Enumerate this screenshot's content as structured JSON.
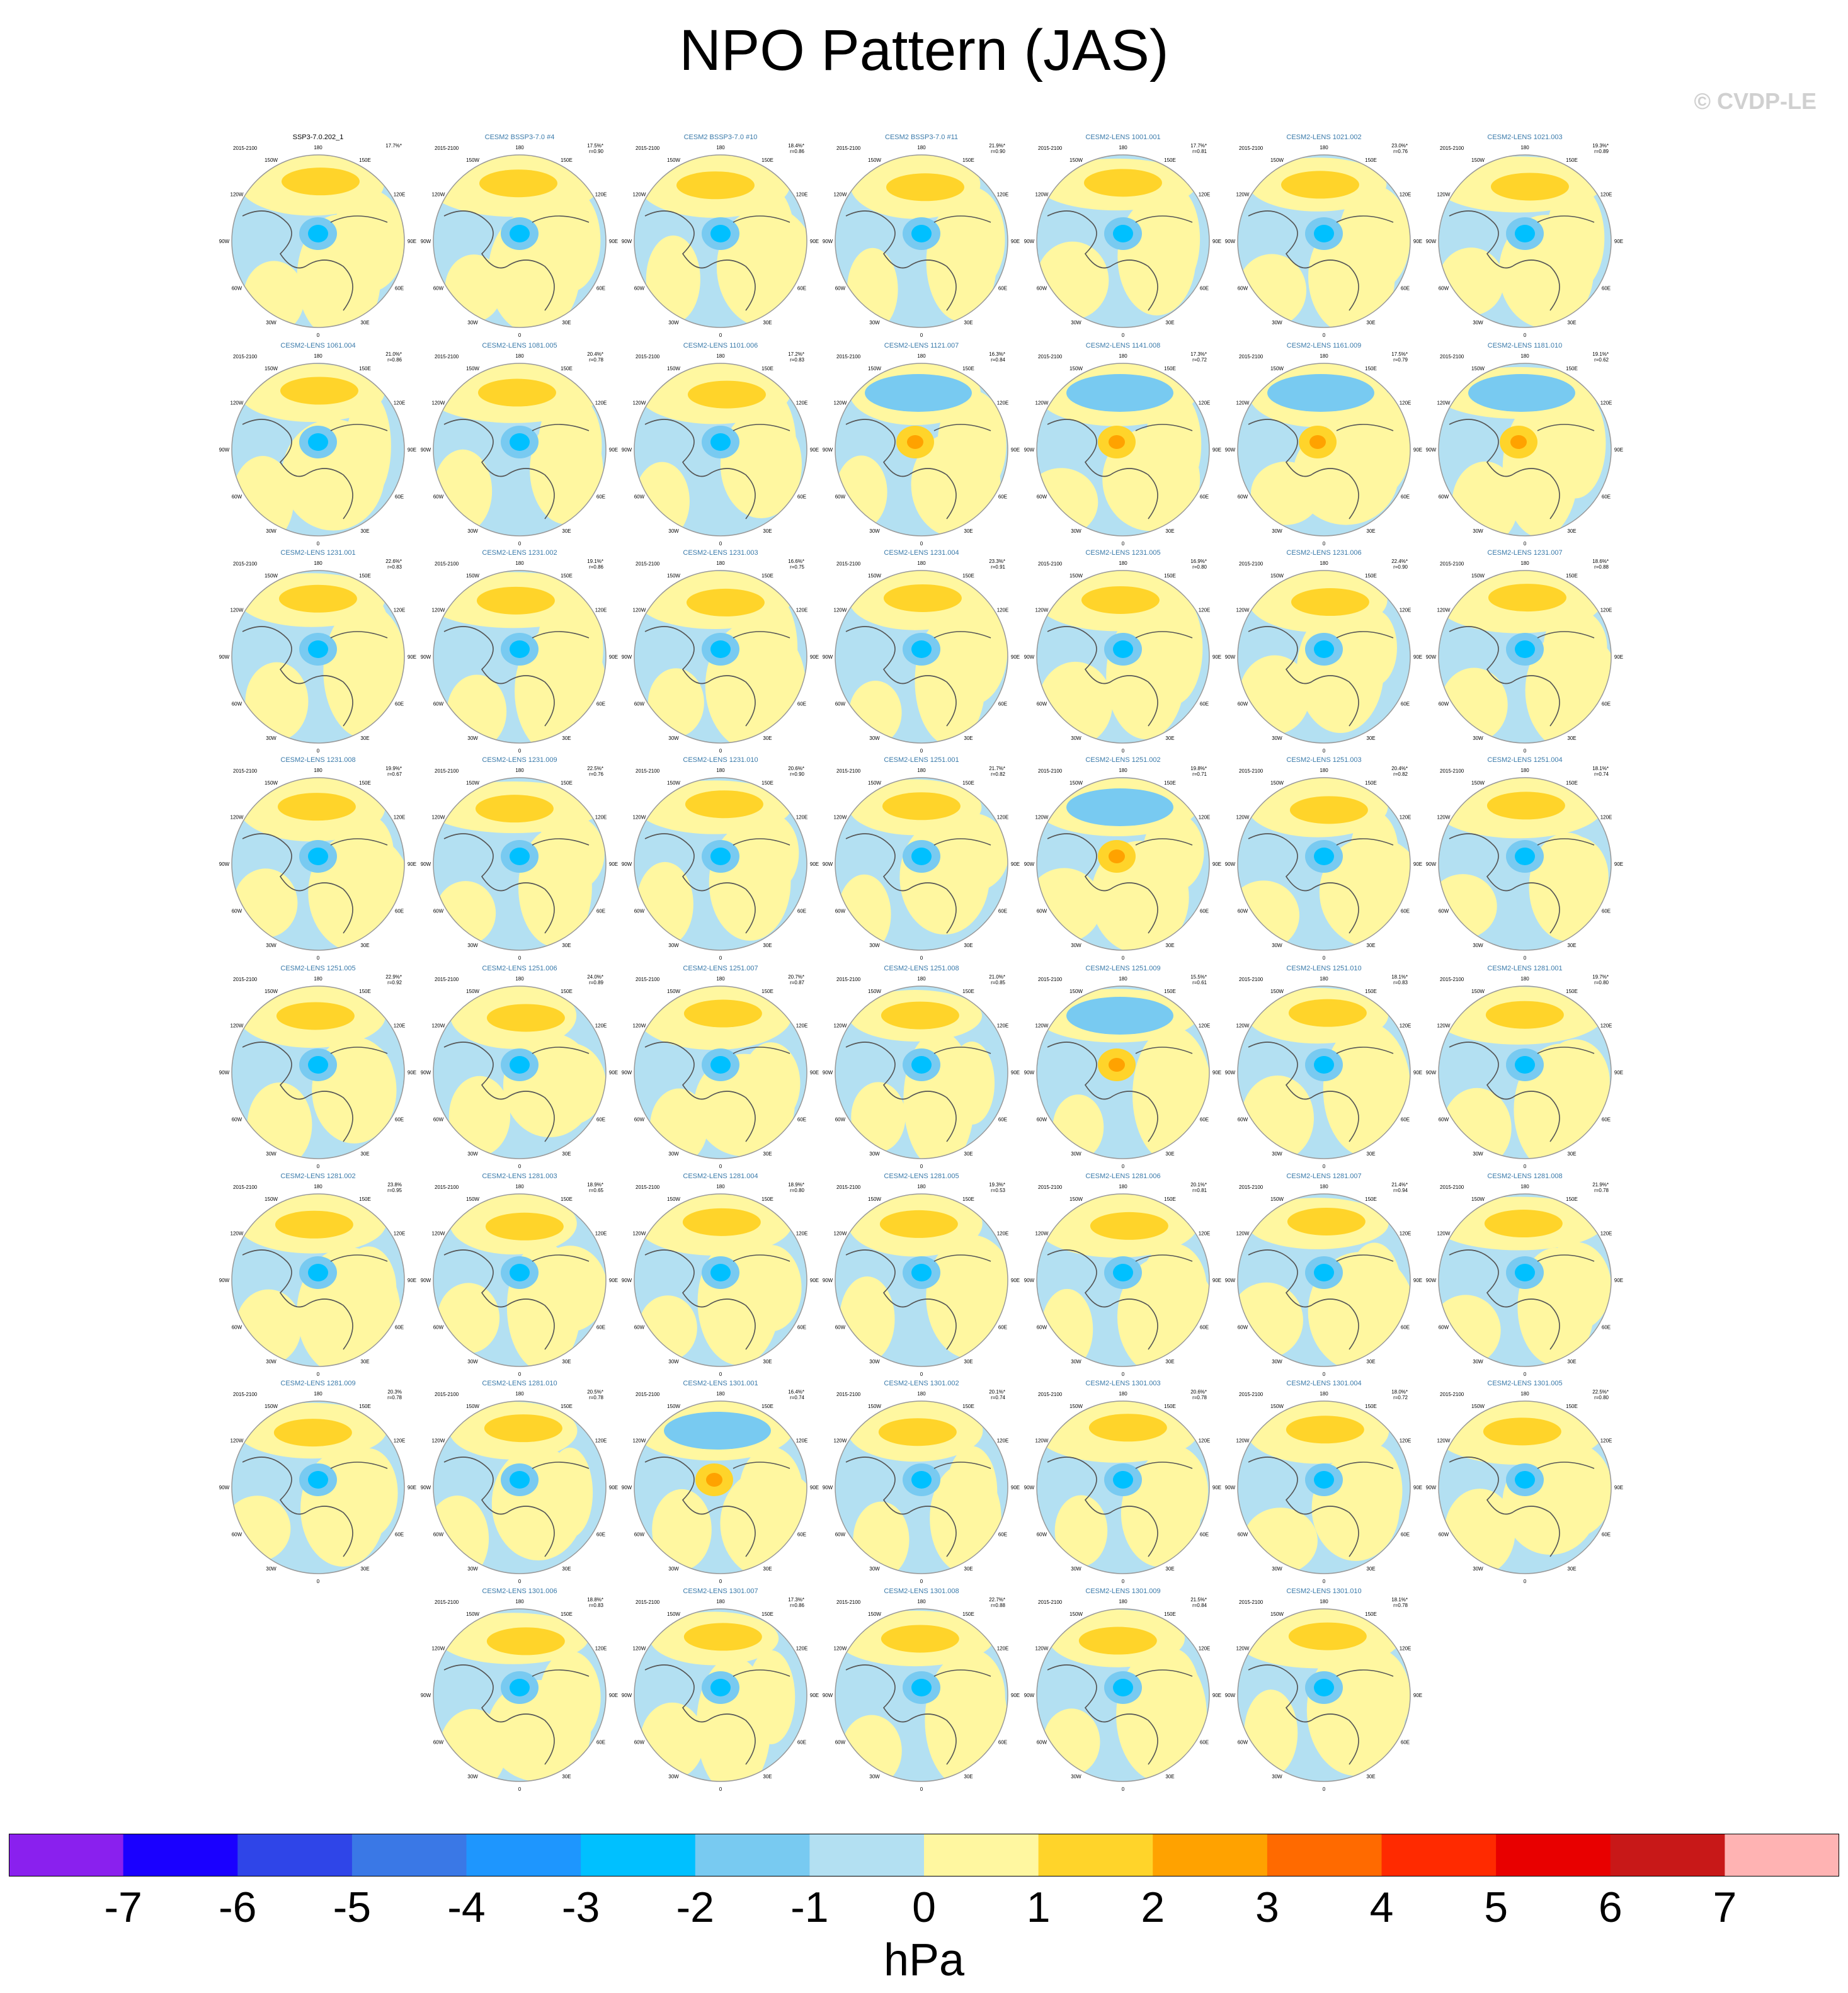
{
  "title": "NPO Pattern (JAS)",
  "watermark": "© CVDP-LE",
  "panel_period": "2015-2100",
  "lon_labels": [
    "180",
    "150E",
    "120E",
    "90E",
    "60E",
    "30E",
    "0",
    "30W",
    "60W",
    "90W",
    "120W",
    "150W"
  ],
  "panels": [
    {
      "name": "SSP3-7.0.202_1",
      "pct": "17.7%*",
      "r": ""
    },
    {
      "name": "CESM2 BSSP3-7.0 #4",
      "pct": "17.5%*",
      "r": "r=0.90"
    },
    {
      "name": "CESM2 BSSP3-7.0 #10",
      "pct": "18.4%*",
      "r": "r=0.86"
    },
    {
      "name": "CESM2 BSSP3-7.0 #11",
      "pct": "21.9%*",
      "r": "r=0.90"
    },
    {
      "name": "CESM2-LENS 1001.001",
      "pct": "17.7%*",
      "r": "r=0.81"
    },
    {
      "name": "CESM2-LENS 1021.002",
      "pct": "23.0%*",
      "r": "r=0.76"
    },
    {
      "name": "CESM2-LENS 1021.003",
      "pct": "19.3%*",
      "r": "r=0.89"
    },
    {
      "name": "CESM2-LENS 1061.004",
      "pct": "21.0%*",
      "r": "r=0.86"
    },
    {
      "name": "CESM2-LENS 1081.005",
      "pct": "20.4%*",
      "r": "r=0.78"
    },
    {
      "name": "CESM2-LENS 1101.006",
      "pct": "17.2%*",
      "r": "r=0.83"
    },
    {
      "name": "CESM2-LENS 1121.007",
      "pct": "16.3%*",
      "r": "r=0.84"
    },
    {
      "name": "CESM2-LENS 1141.008",
      "pct": "17.3%*",
      "r": "r=0.72"
    },
    {
      "name": "CESM2-LENS 1161.009",
      "pct": "17.5%*",
      "r": "r=0.79"
    },
    {
      "name": "CESM2-LENS 1181.010",
      "pct": "19.1%*",
      "r": "r=0.62"
    },
    {
      "name": "CESM2-LENS 1231.001",
      "pct": "22.6%*",
      "r": "r=0.83"
    },
    {
      "name": "CESM2-LENS 1231.002",
      "pct": "19.1%*",
      "r": "r=0.86"
    },
    {
      "name": "CESM2-LENS 1231.003",
      "pct": "16.6%*",
      "r": "r=0.75"
    },
    {
      "name": "CESM2-LENS 1231.004",
      "pct": "23.3%*",
      "r": "r=0.91"
    },
    {
      "name": "CESM2-LENS 1231.005",
      "pct": "16.9%*",
      "r": "r=0.80"
    },
    {
      "name": "CESM2-LENS 1231.006",
      "pct": "22.4%*",
      "r": "r=0.90"
    },
    {
      "name": "CESM2-LENS 1231.007",
      "pct": "18.6%*",
      "r": "r=0.88"
    },
    {
      "name": "CESM2-LENS 1231.008",
      "pct": "19.9%*",
      "r": "r=0.67"
    },
    {
      "name": "CESM2-LENS 1231.009",
      "pct": "22.5%*",
      "r": "r=0.76"
    },
    {
      "name": "CESM2-LENS 1231.010",
      "pct": "20.6%*",
      "r": "r=0.90"
    },
    {
      "name": "CESM2-LENS 1251.001",
      "pct": "21.7%*",
      "r": "r=0.82"
    },
    {
      "name": "CESM2-LENS 1251.002",
      "pct": "19.8%*",
      "r": "r=0.71"
    },
    {
      "name": "CESM2-LENS 1251.003",
      "pct": "20.4%*",
      "r": "r=0.82"
    },
    {
      "name": "CESM2-LENS 1251.004",
      "pct": "18.1%*",
      "r": "r=0.74"
    },
    {
      "name": "CESM2-LENS 1251.005",
      "pct": "22.9%*",
      "r": "r=0.92"
    },
    {
      "name": "CESM2-LENS 1251.006",
      "pct": "24.0%*",
      "r": "r=0.89"
    },
    {
      "name": "CESM2-LENS 1251.007",
      "pct": "20.7%*",
      "r": "r=0.87"
    },
    {
      "name": "CESM2-LENS 1251.008",
      "pct": "21.0%*",
      "r": "r=0.85"
    },
    {
      "name": "CESM2-LENS 1251.009",
      "pct": "15.5%*",
      "r": "r=0.61"
    },
    {
      "name": "CESM2-LENS 1251.010",
      "pct": "18.1%*",
      "r": "r=0.83"
    },
    {
      "name": "CESM2-LENS 1281.001",
      "pct": "19.7%*",
      "r": "r=0.80"
    },
    {
      "name": "CESM2-LENS 1281.002",
      "pct": "23.8%",
      "r": "r=0.95"
    },
    {
      "name": "CESM2-LENS 1281.003",
      "pct": "18.9%*",
      "r": "r=0.65"
    },
    {
      "name": "CESM2-LENS 1281.004",
      "pct": "18.9%*",
      "r": "r=0.80"
    },
    {
      "name": "CESM2-LENS 1281.005",
      "pct": "19.3%*",
      "r": "r=0.53"
    },
    {
      "name": "CESM2-LENS 1281.006",
      "pct": "20.1%*",
      "r": "r=0.81"
    },
    {
      "name": "CESM2-LENS 1281.007",
      "pct": "21.4%*",
      "r": "r=0.94"
    },
    {
      "name": "CESM2-LENS 1281.008",
      "pct": "21.9%*",
      "r": "r=0.78"
    },
    {
      "name": "CESM2-LENS 1281.009",
      "pct": "20.3%",
      "r": "r=0.78"
    },
    {
      "name": "CESM2-LENS 1281.010",
      "pct": "20.5%*",
      "r": "r=0.78"
    },
    {
      "name": "CESM2-LENS 1301.001",
      "pct": "16.4%*",
      "r": "r=0.74"
    },
    {
      "name": "CESM2-LENS 1301.002",
      "pct": "20.1%*",
      "r": "r=0.74"
    },
    {
      "name": "CESM2-LENS 1301.003",
      "pct": "20.6%*",
      "r": "r=0.78"
    },
    {
      "name": "CESM2-LENS 1301.004",
      "pct": "18.0%*",
      "r": "r=0.72"
    },
    {
      "name": "CESM2-LENS 1301.005",
      "pct": "22.5%*",
      "r": "r=0.80"
    },
    {
      "name": "CESM2-LENS 1301.006",
      "pct": "18.8%*",
      "r": "r=0.83"
    },
    {
      "name": "CESM2-LENS 1301.007",
      "pct": "17.3%*",
      "r": "r=0.86"
    },
    {
      "name": "CESM2-LENS 1301.008",
      "pct": "22.7%*",
      "r": "r=0.88"
    },
    {
      "name": "CESM2-LENS 1301.009",
      "pct": "21.5%*",
      "r": "r=0.84"
    },
    {
      "name": "CESM2-LENS 1301.010",
      "pct": "18.1%*",
      "r": "r=0.78"
    }
  ],
  "colorbar": {
    "units": "hPa",
    "ticks": [
      "-7",
      "-6",
      "-5",
      "-4",
      "-3",
      "-2",
      "-1",
      "0",
      "1",
      "2",
      "3",
      "4",
      "5",
      "6",
      "7"
    ],
    "colors": [
      "#8a20ee",
      "#1a00ff",
      "#2f45e8",
      "#3a78e6",
      "#1e96fe",
      "#00c0ff",
      "#78caf1",
      "#b3e0f2",
      "#fff7a0",
      "#ffd42a",
      "#ffa200",
      "#ff6a00",
      "#ff2a00",
      "#e80000",
      "#c81818",
      "#ffb3b3"
    ],
    "ocean_default": "#b3e0f2",
    "land_default": "#fff7a0"
  }
}
